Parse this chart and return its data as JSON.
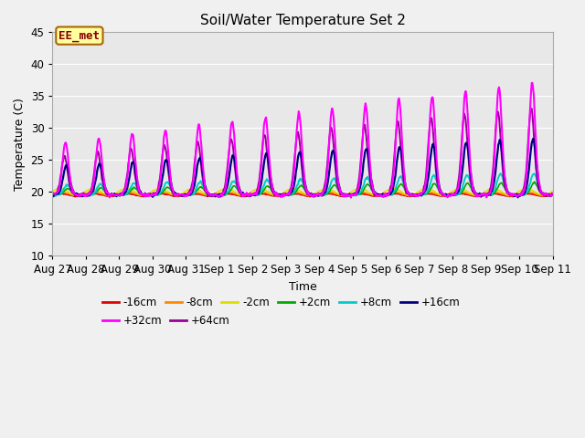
{
  "title": "Soil/Water Temperature Set 2",
  "xlabel": "Time",
  "ylabel": "Temperature (C)",
  "ylim": [
    10,
    45
  ],
  "xlim": [
    0,
    15
  ],
  "fig_facecolor": "#f0f0f0",
  "plot_bg_color": "#e8e8e8",
  "series_colors": {
    "-16cm": "#dd0000",
    "-8cm": "#ff8800",
    "-2cm": "#dddd00",
    "+2cm": "#00aa00",
    "+8cm": "#00cccc",
    "+16cm": "#000080",
    "+32cm": "#ff00ff",
    "+64cm": "#990099"
  },
  "xtick_labels": [
    "Aug 27",
    "Aug 28",
    "Aug 29",
    "Aug 30",
    "Aug 31",
    "Sep 1",
    "Sep 2",
    "Sep 3",
    "Sep 4",
    "Sep 5",
    "Sep 6",
    "Sep 7",
    "Sep 8",
    "Sep 9",
    "Sep 10",
    "Sep 11"
  ],
  "xtick_positions": [
    0,
    1,
    2,
    3,
    4,
    5,
    6,
    7,
    8,
    9,
    10,
    11,
    12,
    13,
    14,
    15
  ],
  "yticks": [
    10,
    15,
    20,
    25,
    30,
    35,
    40,
    45
  ],
  "annotation": {
    "text": "EE_met",
    "bbox_facecolor": "#ffffa0",
    "bbox_edgecolor": "#aa6600",
    "text_color": "#880000"
  }
}
